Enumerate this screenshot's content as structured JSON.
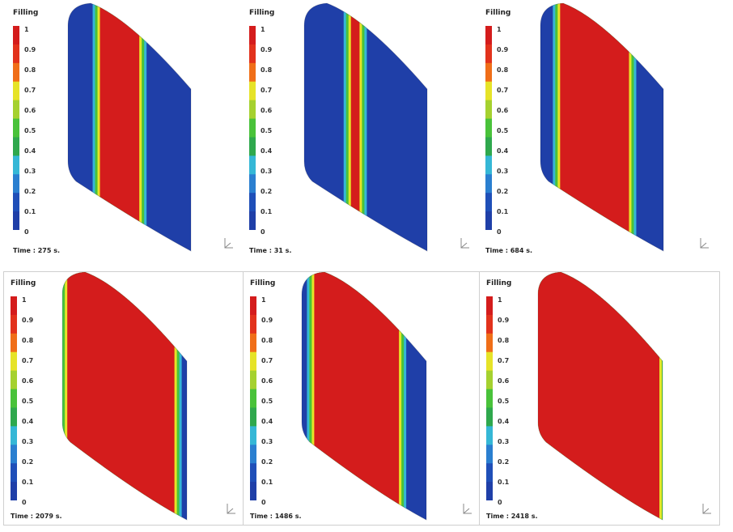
{
  "legend": {
    "title": "Filling",
    "labels": [
      "1",
      "0.9",
      "0.8",
      "0.7",
      "0.6",
      "0.5",
      "0.4",
      "0.3",
      "0.2",
      "0.1",
      "0"
    ]
  },
  "colors": {
    "filled": "#d41c1c",
    "empty": "#1f3fa8",
    "front_green": "#49c23a",
    "front_yellow": "#e6e328",
    "front_cyan": "#35b7d6",
    "colorbar": [
      "#d41c1c",
      "#e2321c",
      "#f06e18",
      "#e6e328",
      "#a5d12f",
      "#49c23a",
      "#2fa84d",
      "#35b7d6",
      "#2a7fd0",
      "#1f4fb8",
      "#1f3fa8"
    ]
  },
  "panels": [
    {
      "time": "Time : 275 s.",
      "fill_fraction": 0.3
    },
    {
      "time": "Time : 31 s.",
      "fill_fraction": 0.05
    },
    {
      "time": "Time : 684 s.",
      "fill_fraction": 0.55
    },
    {
      "time": "Time : 2079 s.",
      "fill_fraction": 0.9
    },
    {
      "time": "Time : 1486 s.",
      "fill_fraction": 0.75
    },
    {
      "time": "Time : 2418 s.",
      "fill_fraction": 0.98
    }
  ]
}
